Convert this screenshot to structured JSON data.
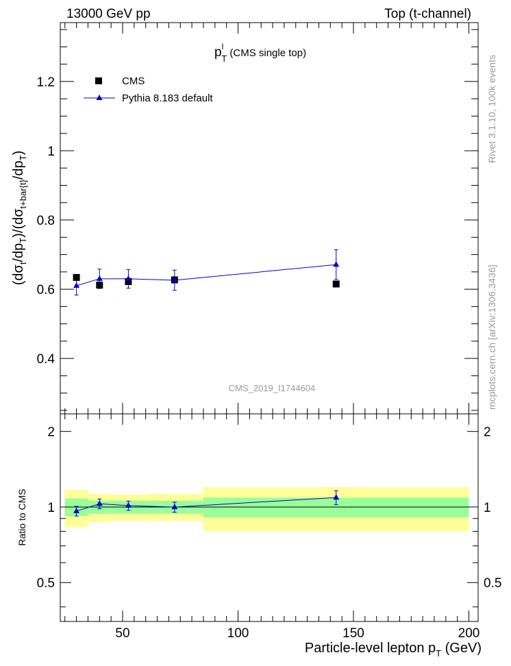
{
  "header": {
    "left": "13000 GeV pp",
    "right": "Top (t-channel)"
  },
  "side_labels": {
    "rivet": "Rivet 3.1.10,  100k events",
    "mcplots": "mcplots.cern.ch [arXiv:1306.3436]"
  },
  "colors": {
    "mc": "#0000cc",
    "band_inner": "#99ff99",
    "band_outer": "#ffff99",
    "data": "#000000",
    "watermark": "#999999"
  },
  "chart_data": [
    {
      "type": "scatter",
      "panel": "main",
      "title_main": "p",
      "title_sup": "l",
      "title_sub": "T",
      "title_extra": " (CMS single top)",
      "watermark": "CMS_2019_I1744604",
      "ylabel": "(dσt/dpT)/(dσt+bart/dpT)",
      "xlim": [
        23,
        204
      ],
      "ylim": [
        0.24,
        1.37
      ],
      "yticks": [
        0.4,
        0.6,
        0.8,
        1,
        1.2
      ],
      "ytick_labels": [
        "0.4",
        "0.6",
        "0.8",
        "1",
        "1.2"
      ],
      "legend": [
        {
          "name": "CMS",
          "marker": "square"
        },
        {
          "name": "Pythia 8.183 default",
          "marker": "triangle-line"
        }
      ],
      "series": [
        {
          "name": "CMS",
          "x": [
            30,
            40,
            52.5,
            72.5,
            142.5
          ],
          "y": [
            0.634,
            0.612,
            0.622,
            0.627,
            0.615
          ]
        },
        {
          "name": "Pythia 8.183 default",
          "x": [
            30,
            40,
            52.5,
            72.5,
            142.5
          ],
          "y": [
            0.61,
            0.63,
            0.63,
            0.626,
            0.671
          ],
          "yerr": [
            0.027,
            0.028,
            0.027,
            0.029,
            0.043
          ]
        }
      ]
    },
    {
      "type": "scatter",
      "panel": "ratio",
      "ylabel": "Ratio to CMS",
      "xlabel": "Particle-level lepton p",
      "xlabel_sub": "T",
      "xlabel_unit": " (GeV)",
      "xlim": [
        23,
        204
      ],
      "ylim": [
        0.35,
        2.35
      ],
      "xticks": [
        50,
        100,
        150,
        200
      ],
      "xtick_labels": [
        "50",
        "100",
        "150",
        "200"
      ],
      "yticks": [
        0.5,
        1,
        2
      ],
      "ytick_labels": [
        "0.5",
        "1",
        "2"
      ],
      "bands": [
        {
          "x0": 25,
          "x1": 35,
          "inner": [
            0.92,
            1.08
          ],
          "outer": [
            0.83,
            1.17
          ]
        },
        {
          "x0": 35,
          "x1": 45,
          "inner": [
            0.94,
            1.06
          ],
          "outer": [
            0.87,
            1.13
          ]
        },
        {
          "x0": 45,
          "x1": 60,
          "inner": [
            0.94,
            1.06
          ],
          "outer": [
            0.88,
            1.12
          ]
        },
        {
          "x0": 60,
          "x1": 85,
          "inner": [
            0.94,
            1.06
          ],
          "outer": [
            0.88,
            1.13
          ]
        },
        {
          "x0": 85,
          "x1": 200,
          "inner": [
            0.91,
            1.09
          ],
          "outer": [
            0.8,
            1.2
          ]
        }
      ],
      "series": [
        {
          "name": "Pythia 8.183 default / CMS",
          "x": [
            30,
            40,
            52.5,
            72.5,
            142.5
          ],
          "y": [
            0.963,
            1.03,
            1.013,
            0.999,
            1.091
          ],
          "yerr": [
            0.043,
            0.046,
            0.043,
            0.046,
            0.07
          ]
        }
      ]
    }
  ]
}
